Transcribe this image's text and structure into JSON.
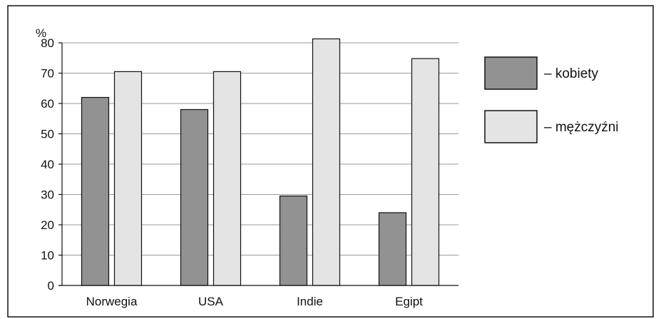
{
  "chart_data": {
    "type": "bar",
    "categories": [
      "Norwegia",
      "USA",
      "Indie",
      "Egipt"
    ],
    "series": [
      {
        "name": "– kobiety",
        "values": [
          62,
          58,
          29.5,
          24
        ],
        "color": "#929292"
      },
      {
        "name": "– mężczyźni",
        "values": [
          70.5,
          70.5,
          81.3,
          74.8
        ],
        "color": "#e4e4e4"
      }
    ],
    "ylabel": "%",
    "xlabel": "",
    "title": "",
    "ylim": [
      0,
      80
    ],
    "yticks": [
      0,
      10,
      20,
      30,
      40,
      50,
      60,
      70,
      80
    ],
    "grid": true,
    "legend_position": "right"
  }
}
